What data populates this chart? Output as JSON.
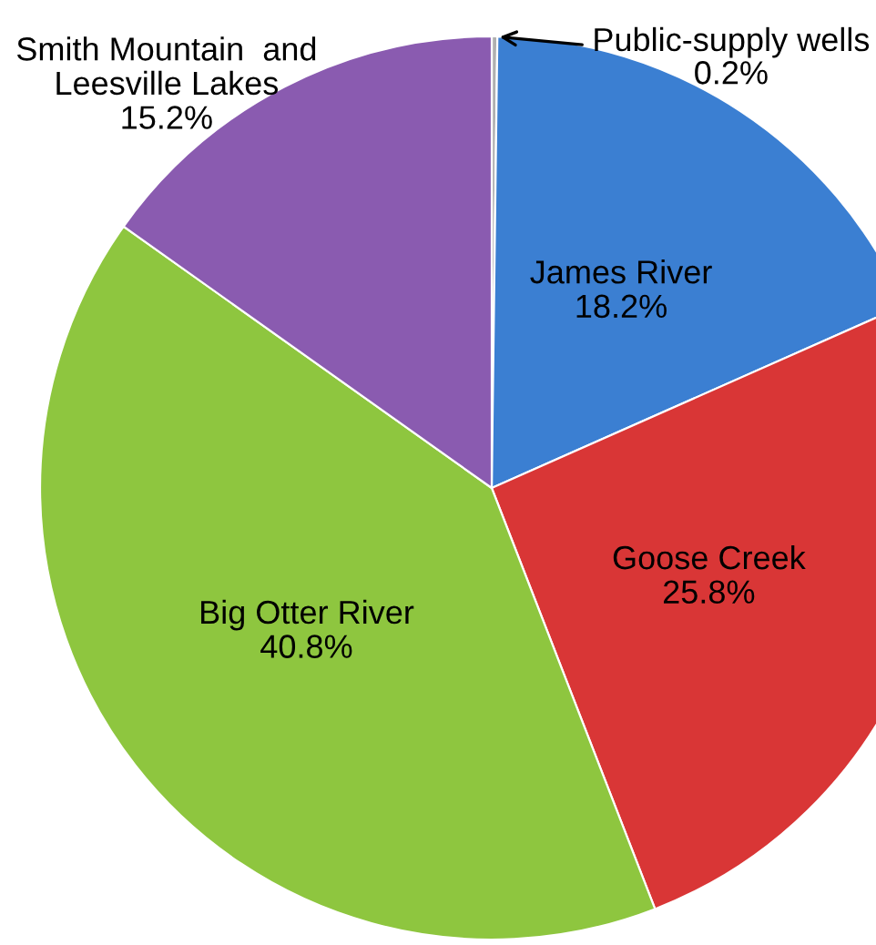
{
  "chart_data": {
    "type": "pie",
    "categories": [
      "Public-supply wells",
      "James River",
      "Goose Creek",
      "Big Otter River",
      "Smith Mountain  and\nLeesville Lakes"
    ],
    "values": [
      0.2,
      18.2,
      25.8,
      40.8,
      15.2
    ],
    "value_labels": [
      "0.2%",
      "18.2%",
      "25.8%",
      "40.8%",
      "15.2%"
    ],
    "colors": [
      "#b0b0b0",
      "#3b7fd2",
      "#d93636",
      "#8ec63f",
      "#8a5bb0"
    ]
  }
}
